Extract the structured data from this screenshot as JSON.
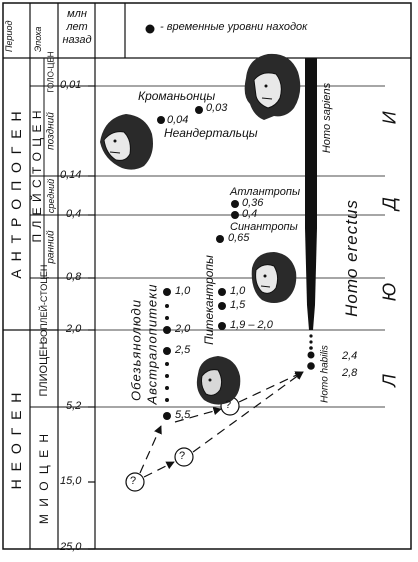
{
  "header": {
    "period": "Период",
    "epoch": "Эпоха",
    "mya": "млн лет назад",
    "legend": "- временные уровни находок"
  },
  "periods": [
    {
      "label": "А Н Т Р О П О Г Е Н"
    },
    {
      "label": "Н Е О Г Е Н"
    }
  ],
  "epochs": [
    {
      "label": "П Л Е Й С Т О Ц Е Н"
    },
    {
      "label": "ГОЛО-ЦЕН"
    },
    {
      "label": "поздний"
    },
    {
      "label": "средний"
    },
    {
      "label": "ранний"
    },
    {
      "label": "ЭОПЛЕЙ-СТОЦЕН"
    },
    {
      "label": "ПЛИОЦЕН"
    },
    {
      "label": "М И О Ц Е Н"
    }
  ],
  "timescale": [
    "0,01",
    "0,14",
    "0,4",
    "0,8",
    "2,0",
    "5,2",
    "15,0",
    "25,0"
  ],
  "people": "Л Ю Д И",
  "groups": {
    "cro": "Кроманьонцы",
    "nean": "Неандертальцы",
    "atl": "Атлантропы",
    "sin": "Синантропы",
    "pit": "Питекантропы",
    "apes": "Обезьянолюди",
    "austr": "Австралопитеки"
  },
  "species": {
    "sapiens": "Homo sapiens",
    "erectus": "Homo erectus",
    "habilis": "Homo habilis"
  },
  "finds": {
    "cro": "0,03",
    "nean": "0,04",
    "atl1": "0,36",
    "atl2": "0,4",
    "sin": "0,65",
    "pit1": "1,0",
    "pit2": "1,5",
    "pit3": "1,9 – 2,0",
    "aus1": "1,0",
    "aus2": "2,0",
    "aus3": "2,5",
    "aus4": "5,5",
    "hab1": "2,4",
    "hab2": "2,8"
  },
  "unknown_mark": "?"
}
